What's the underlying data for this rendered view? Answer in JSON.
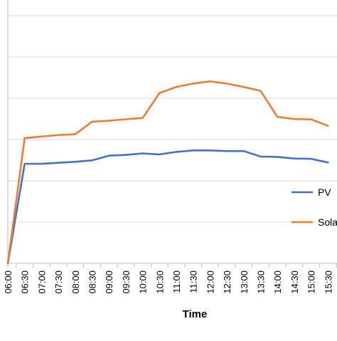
{
  "chart_data": {
    "type": "line",
    "title": "",
    "xlabel": "Time",
    "ylabel": "",
    "categories": [
      "06:00",
      "06:30",
      "07:00",
      "07:30",
      "08:00",
      "08:30",
      "09:00",
      "09:30",
      "10:00",
      "10:30",
      "11:00",
      "11:30",
      "12:00",
      "12:30",
      "13:00",
      "13:30",
      "14:00",
      "14:30",
      "15:00",
      "15:30"
    ],
    "grid": true,
    "legend_position": "right",
    "series": [
      {
        "name": "PV",
        "color": "#4472C4",
        "values": [
          0,
          0.603,
          0.603,
          0.609,
          0.615,
          0.624,
          0.652,
          0.657,
          0.666,
          0.66,
          0.675,
          0.684,
          0.684,
          0.68,
          0.68,
          0.647,
          0.645,
          0.635,
          0.633,
          0.611
        ]
      },
      {
        "name": "Solar",
        "color": "#ED7D31",
        "values": [
          0,
          0.759,
          0.768,
          0.777,
          0.782,
          0.858,
          0.864,
          0.873,
          0.88,
          1.032,
          1.068,
          1.089,
          1.102,
          1.089,
          1.068,
          1.045,
          0.887,
          0.874,
          0.872,
          0.833
        ]
      }
    ]
  }
}
